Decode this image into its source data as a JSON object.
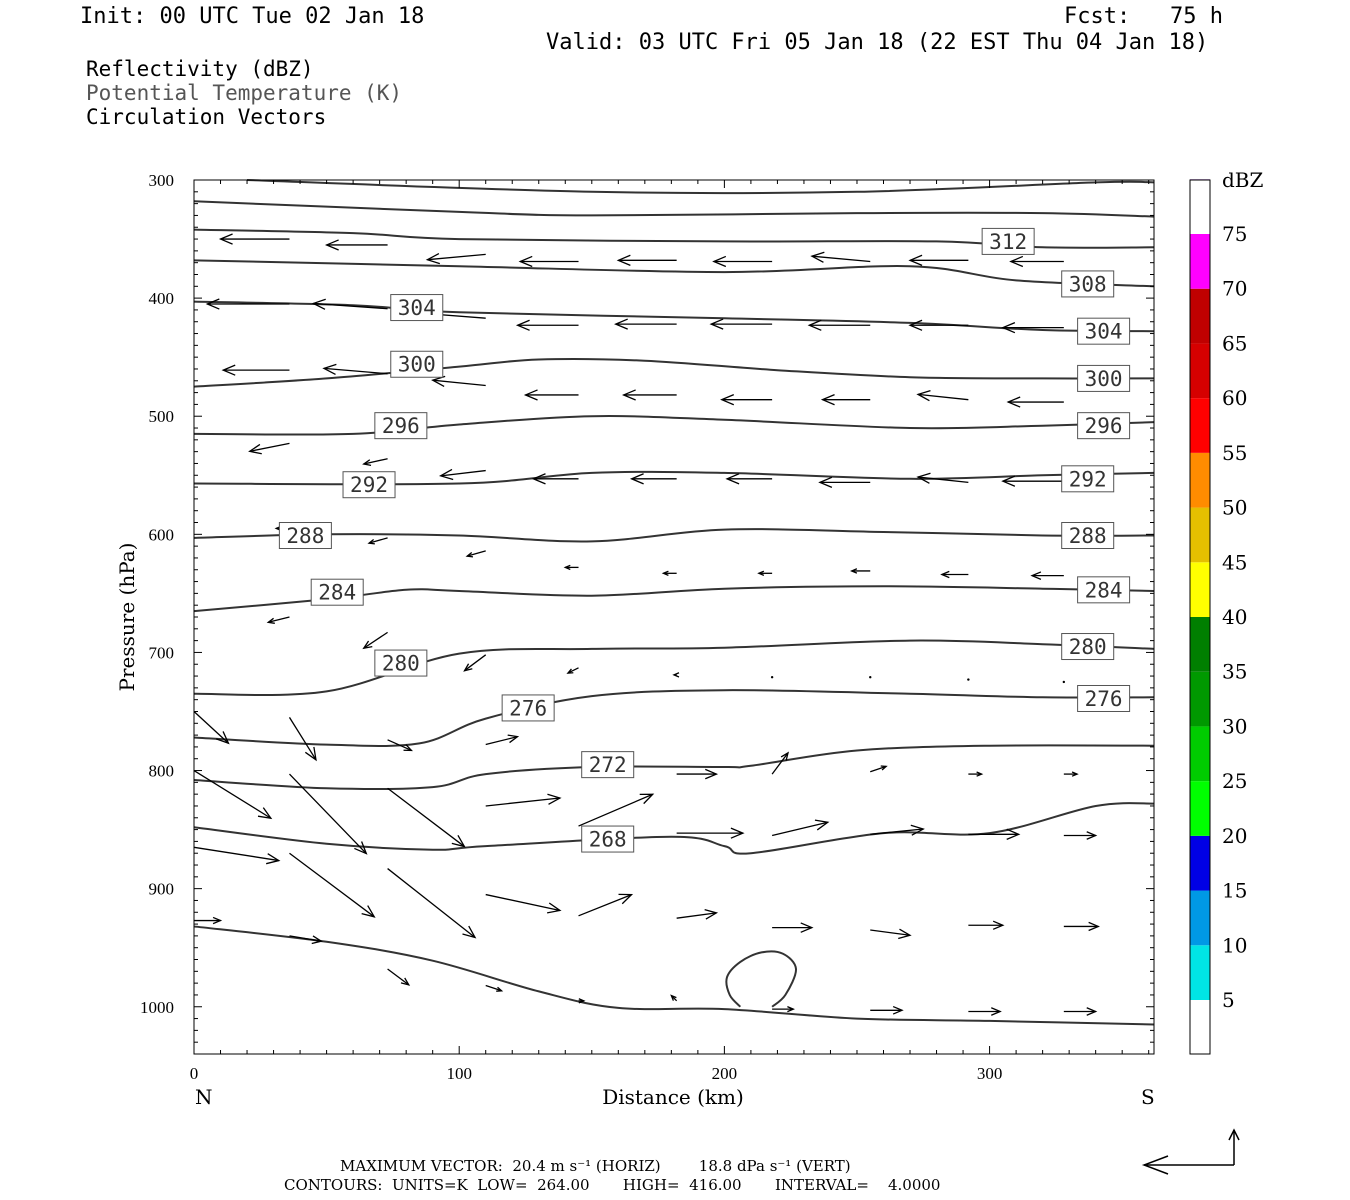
{
  "header": {
    "init": "Init: 00 UTC Tue 02 Jan 18",
    "fcst": "Fcst:   75 h",
    "valid": "Valid: 03 UTC Fri 05 Jan 18 (22 EST Thu 04 Jan 18)",
    "field1": "Reflectivity (dBZ)",
    "field2": "Potential Temperature (K)",
    "field3": "Circulation Vectors"
  },
  "footer": {
    "line1": "MAXIMUM VECTOR:  20.4 m s⁻¹ (HORIZ)        18.8 dPa s⁻¹ (VERT)",
    "line2": "CONTOURS:  UNITS=K  LOW=  264.00       HIGH=  416.00       INTERVAL=    4.0000"
  },
  "colors": {
    "contour": "#333333",
    "vector": "#000000",
    "colorbar": [
      "#ffffff",
      "#00e5e5",
      "#0099e5",
      "#0000e5",
      "#00ff00",
      "#00cc00",
      "#009900",
      "#007f00",
      "#ffff00",
      "#e5c000",
      "#ff8c00",
      "#ff0000",
      "#d60000",
      "#c00000",
      "#ff00ff",
      "#9955cc",
      "#ffffff"
    ]
  },
  "chart_data": {
    "type": "cross-section",
    "xlabel": "Distance (km)",
    "ylabel": "Pressure (hPa)",
    "xlim": [
      0,
      362
    ],
    "ylim": [
      1040,
      300
    ],
    "x_ticks": [
      "0",
      "100",
      "200",
      "300"
    ],
    "x_tick_values": [
      0,
      100,
      200,
      300
    ],
    "y_ticks": [
      "300",
      "400",
      "500",
      "600",
      "700",
      "800",
      "900",
      "1000"
    ],
    "y_tick_values": [
      300,
      400,
      500,
      600,
      700,
      800,
      900,
      1000
    ],
    "left_end": "N",
    "right_end": "S",
    "colorbar": {
      "unit": "dBZ",
      "labels": [
        "5",
        "10",
        "15",
        "20",
        "25",
        "30",
        "35",
        "40",
        "45",
        "50",
        "55",
        "60",
        "65",
        "70",
        "75"
      ]
    },
    "contour_labels": [
      {
        "text": "312",
        "x": 307,
        "p": 352
      },
      {
        "text": "308",
        "x": 337,
        "p": 388
      },
      {
        "text": "304",
        "x": 84,
        "p": 408
      },
      {
        "text": "304",
        "x": 343,
        "p": 428
      },
      {
        "text": "300",
        "x": 84,
        "p": 456
      },
      {
        "text": "300",
        "x": 343,
        "p": 468
      },
      {
        "text": "296",
        "x": 78,
        "p": 508
      },
      {
        "text": "296",
        "x": 343,
        "p": 508
      },
      {
        "text": "292",
        "x": 66,
        "p": 558
      },
      {
        "text": "292",
        "x": 337,
        "p": 553
      },
      {
        "text": "288",
        "x": 42,
        "p": 601
      },
      {
        "text": "288",
        "x": 337,
        "p": 601
      },
      {
        "text": "284",
        "x": 54,
        "p": 649
      },
      {
        "text": "284",
        "x": 343,
        "p": 647
      },
      {
        "text": "280",
        "x": 78,
        "p": 709
      },
      {
        "text": "280",
        "x": 337,
        "p": 695
      },
      {
        "text": "276",
        "x": 126,
        "p": 747
      },
      {
        "text": "276",
        "x": 343,
        "p": 739
      },
      {
        "text": "272",
        "x": 156,
        "p": 795
      },
      {
        "text": "268",
        "x": 156,
        "p": 858
      }
    ],
    "contours": [
      [
        [
          20,
          300
        ],
        [
          150,
          310
        ],
        [
          250,
          310
        ],
        [
          340,
          302
        ],
        [
          362,
          302
        ]
      ],
      [
        [
          0,
          318
        ],
        [
          100,
          327
        ],
        [
          150,
          330
        ],
        [
          250,
          328
        ],
        [
          320,
          328
        ],
        [
          362,
          331
        ]
      ],
      [
        [
          0,
          342
        ],
        [
          60,
          345
        ],
        [
          100,
          350
        ],
        [
          200,
          352
        ],
        [
          280,
          352
        ],
        [
          320,
          357
        ],
        [
          362,
          357
        ]
      ],
      [
        [
          0,
          368
        ],
        [
          100,
          373
        ],
        [
          200,
          378
        ],
        [
          270,
          373
        ],
        [
          310,
          385
        ],
        [
          362,
          390
        ]
      ],
      [
        [
          0,
          403
        ],
        [
          60,
          406
        ],
        [
          100,
          412
        ],
        [
          200,
          417
        ],
        [
          270,
          421
        ],
        [
          320,
          427
        ],
        [
          362,
          428
        ]
      ],
      [
        [
          0,
          475
        ],
        [
          50,
          468
        ],
        [
          100,
          458
        ],
        [
          130,
          452
        ],
        [
          170,
          453
        ],
        [
          220,
          461
        ],
        [
          270,
          467
        ],
        [
          320,
          468
        ],
        [
          362,
          468
        ]
      ],
      [
        [
          0,
          515
        ],
        [
          60,
          515
        ],
        [
          100,
          507
        ],
        [
          150,
          500
        ],
        [
          200,
          503
        ],
        [
          270,
          510
        ],
        [
          320,
          508
        ],
        [
          362,
          505
        ]
      ],
      [
        [
          0,
          557
        ],
        [
          100,
          557
        ],
        [
          150,
          548
        ],
        [
          200,
          548
        ],
        [
          270,
          553
        ],
        [
          320,
          550
        ],
        [
          362,
          548
        ]
      ],
      [
        [
          0,
          603
        ],
        [
          50,
          600
        ],
        [
          100,
          601
        ],
        [
          150,
          606
        ],
        [
          200,
          596
        ],
        [
          260,
          598
        ],
        [
          320,
          601
        ],
        [
          362,
          601
        ]
      ],
      [
        [
          0,
          665
        ],
        [
          50,
          655
        ],
        [
          80,
          647
        ],
        [
          100,
          648
        ],
        [
          150,
          652
        ],
        [
          200,
          646
        ],
        [
          260,
          644
        ],
        [
          320,
          646
        ],
        [
          362,
          648
        ]
      ],
      [
        [
          0,
          735
        ],
        [
          50,
          733
        ],
        [
          100,
          701
        ],
        [
          150,
          697
        ],
        [
          200,
          696
        ],
        [
          270,
          690
        ],
        [
          320,
          693
        ],
        [
          362,
          697
        ]
      ],
      [
        [
          0,
          772
        ],
        [
          50,
          778
        ],
        [
          85,
          777
        ],
        [
          110,
          756
        ],
        [
          150,
          737
        ],
        [
          200,
          732
        ],
        [
          270,
          735
        ],
        [
          320,
          738
        ],
        [
          362,
          738
        ]
      ],
      [
        [
          0,
          808
        ],
        [
          50,
          815
        ],
        [
          90,
          814
        ],
        [
          110,
          803
        ],
        [
          150,
          797
        ],
        [
          200,
          797
        ],
        [
          210,
          796
        ],
        [
          250,
          783
        ],
        [
          300,
          779
        ],
        [
          362,
          779
        ]
      ],
      [
        [
          0,
          848
        ],
        [
          50,
          862
        ],
        [
          90,
          867
        ],
        [
          110,
          864
        ],
        [
          180,
          856
        ],
        [
          200,
          864
        ],
        [
          210,
          870
        ],
        [
          260,
          853
        ],
        [
          300,
          853
        ],
        [
          340,
          830
        ],
        [
          362,
          828
        ]
      ],
      [
        [
          0,
          932
        ],
        [
          50,
          945
        ],
        [
          90,
          961
        ],
        [
          130,
          987
        ],
        [
          160,
          1001
        ],
        [
          200,
          1002
        ],
        [
          250,
          1010
        ],
        [
          300,
          1012
        ],
        [
          362,
          1015
        ]
      ]
    ],
    "closed_contour": [
      [
        206,
        1000
      ],
      [
        202,
        990
      ],
      [
        201,
        975
      ],
      [
        206,
        962
      ],
      [
        214,
        954
      ],
      [
        222,
        955
      ],
      [
        227,
        968
      ],
      [
        223,
        990
      ],
      [
        218,
        1000
      ]
    ],
    "vectors": [
      {
        "x": 36,
        "p": 350,
        "u": -26,
        "w": 0
      },
      {
        "x": 73,
        "p": 355,
        "u": -23,
        "w": 0
      },
      {
        "x": 110,
        "p": 363,
        "u": -22,
        "w": -2
      },
      {
        "x": 145,
        "p": 369,
        "u": -22,
        "w": 0
      },
      {
        "x": 182,
        "p": 368,
        "u": -22,
        "w": 0
      },
      {
        "x": 218,
        "p": 369,
        "u": -22,
        "w": 0
      },
      {
        "x": 255,
        "p": 369,
        "u": -22,
        "w": 2
      },
      {
        "x": 292,
        "p": 368,
        "u": -22,
        "w": 0
      },
      {
        "x": 328,
        "p": 369,
        "u": -20,
        "w": 0
      },
      {
        "x": 36,
        "p": 405,
        "u": -31,
        "w": 0
      },
      {
        "x": 73,
        "p": 409,
        "u": -28,
        "w": 2
      },
      {
        "x": 110,
        "p": 417,
        "u": -26,
        "w": 2
      },
      {
        "x": 145,
        "p": 423,
        "u": -23,
        "w": 0
      },
      {
        "x": 182,
        "p": 422,
        "u": -23,
        "w": 0
      },
      {
        "x": 218,
        "p": 422,
        "u": -23,
        "w": 0
      },
      {
        "x": 255,
        "p": 423,
        "u": -23,
        "w": 0
      },
      {
        "x": 292,
        "p": 423,
        "u": -22,
        "w": 0
      },
      {
        "x": 328,
        "p": 425,
        "u": -23,
        "w": 0
      },
      {
        "x": 36,
        "p": 461,
        "u": -25,
        "w": 0
      },
      {
        "x": 73,
        "p": 464,
        "u": -24,
        "w": 2
      },
      {
        "x": 110,
        "p": 474,
        "u": -20,
        "w": 2
      },
      {
        "x": 145,
        "p": 482,
        "u": -20,
        "w": 0
      },
      {
        "x": 182,
        "p": 482,
        "u": -20,
        "w": 0
      },
      {
        "x": 218,
        "p": 486,
        "u": -19,
        "w": 0
      },
      {
        "x": 255,
        "p": 486,
        "u": -18,
        "w": 0
      },
      {
        "x": 292,
        "p": 486,
        "u": -19,
        "w": 2
      },
      {
        "x": 328,
        "p": 488,
        "u": -21,
        "w": 0
      },
      {
        "x": 36,
        "p": 523,
        "u": -15,
        "w": -3
      },
      {
        "x": 73,
        "p": 536,
        "u": -9,
        "w": -2
      },
      {
        "x": 110,
        "p": 546,
        "u": -17,
        "w": -2
      },
      {
        "x": 145,
        "p": 553,
        "u": -17,
        "w": 0
      },
      {
        "x": 182,
        "p": 553,
        "u": -17,
        "w": 0
      },
      {
        "x": 218,
        "p": 553,
        "u": -17,
        "w": 0
      },
      {
        "x": 255,
        "p": 556,
        "u": -19,
        "w": 0
      },
      {
        "x": 292,
        "p": 556,
        "u": -19,
        "w": 2
      },
      {
        "x": 328,
        "p": 555,
        "u": -23,
        "w": 0
      },
      {
        "x": 36,
        "p": 595,
        "u": -5,
        "w": 0
      },
      {
        "x": 73,
        "p": 603,
        "u": -7,
        "w": -2
      },
      {
        "x": 110,
        "p": 614,
        "u": -7,
        "w": -2
      },
      {
        "x": 145,
        "p": 628,
        "u": -5,
        "w": 0
      },
      {
        "x": 182,
        "p": 633,
        "u": -5,
        "w": 0
      },
      {
        "x": 218,
        "p": 633,
        "u": -5,
        "w": 0
      },
      {
        "x": 255,
        "p": 631,
        "u": -7,
        "w": 0
      },
      {
        "x": 292,
        "p": 634,
        "u": -10,
        "w": 0
      },
      {
        "x": 328,
        "p": 635,
        "u": -12,
        "w": 0
      },
      {
        "x": 36,
        "p": 670,
        "u": -8,
        "w": -2
      },
      {
        "x": 73,
        "p": 683,
        "u": -9,
        "w": -6
      },
      {
        "x": 110,
        "p": 702,
        "u": -8,
        "w": -6
      },
      {
        "x": 145,
        "p": 713,
        "u": -4,
        "w": -2
      },
      {
        "x": 182,
        "p": 719,
        "u": -1,
        "w": 0
      },
      {
        "x": 218,
        "p": 721,
        "u": 0,
        "w": 0
      },
      {
        "x": 255,
        "p": 721,
        "u": 0,
        "w": 0
      },
      {
        "x": 292,
        "p": 723,
        "u": 0,
        "w": 0
      },
      {
        "x": 328,
        "p": 725,
        "u": 0,
        "w": 0
      },
      {
        "x": 0,
        "p": 750,
        "u": 13,
        "w": -12
      },
      {
        "x": 36,
        "p": 755,
        "u": 10,
        "w": -16
      },
      {
        "x": 73,
        "p": 774,
        "u": 9,
        "w": -4
      },
      {
        "x": 110,
        "p": 778,
        "u": 12,
        "w": 3
      },
      {
        "x": 0,
        "p": 800,
        "u": 29,
        "w": -18
      },
      {
        "x": 36,
        "p": 803,
        "u": 29,
        "w": -30
      },
      {
        "x": 73,
        "p": 815,
        "u": 29,
        "w": -22
      },
      {
        "x": 110,
        "p": 830,
        "u": 28,
        "w": 3
      },
      {
        "x": 145,
        "p": 847,
        "u": 28,
        "w": 12
      },
      {
        "x": 182,
        "p": 803,
        "u": 15,
        "w": 0
      },
      {
        "x": 218,
        "p": 803,
        "u": 6,
        "w": 8
      },
      {
        "x": 255,
        "p": 801,
        "u": 6,
        "w": 2
      },
      {
        "x": 292,
        "p": 803,
        "u": 5,
        "w": 0
      },
      {
        "x": 328,
        "p": 803,
        "u": 5,
        "w": 0
      },
      {
        "x": 182,
        "p": 853,
        "u": 25,
        "w": 0
      },
      {
        "x": 218,
        "p": 855,
        "u": 21,
        "w": 5
      },
      {
        "x": 255,
        "p": 854,
        "u": 20,
        "w": 2
      },
      {
        "x": 292,
        "p": 854,
        "u": 19,
        "w": 0
      },
      {
        "x": 328,
        "p": 855,
        "u": 12,
        "w": 0
      },
      {
        "x": 0,
        "p": 865,
        "u": 32,
        "w": -5
      },
      {
        "x": 36,
        "p": 870,
        "u": 32,
        "w": -24
      },
      {
        "x": 73,
        "p": 883,
        "u": 33,
        "w": -26
      },
      {
        "x": 110,
        "p": 905,
        "u": 28,
        "w": -6
      },
      {
        "x": 145,
        "p": 923,
        "u": 20,
        "w": 8
      },
      {
        "x": 182,
        "p": 925,
        "u": 15,
        "w": 2
      },
      {
        "x": 218,
        "p": 933,
        "u": 15,
        "w": 0
      },
      {
        "x": 255,
        "p": 935,
        "u": 15,
        "w": -2
      },
      {
        "x": 292,
        "p": 931,
        "u": 13,
        "w": 0
      },
      {
        "x": 328,
        "p": 932,
        "u": 13,
        "w": 0
      },
      {
        "x": 0,
        "p": 927,
        "u": 10,
        "w": 0
      },
      {
        "x": 36,
        "p": 940,
        "u": 12,
        "w": -2
      },
      {
        "x": 73,
        "p": 968,
        "u": 8,
        "w": -6
      },
      {
        "x": 110,
        "p": 982,
        "u": 6,
        "w": -2
      },
      {
        "x": 145,
        "p": 995,
        "u": 2,
        "w": 0
      },
      {
        "x": 182,
        "p": 995,
        "u": -2,
        "w": 2
      },
      {
        "x": 218,
        "p": 1002,
        "u": 8,
        "w": 0
      },
      {
        "x": 255,
        "p": 1003,
        "u": 12,
        "w": 0
      },
      {
        "x": 292,
        "p": 1004,
        "u": 12,
        "w": 0
      },
      {
        "x": 328,
        "p": 1004,
        "u": 12,
        "w": 0
      }
    ]
  }
}
